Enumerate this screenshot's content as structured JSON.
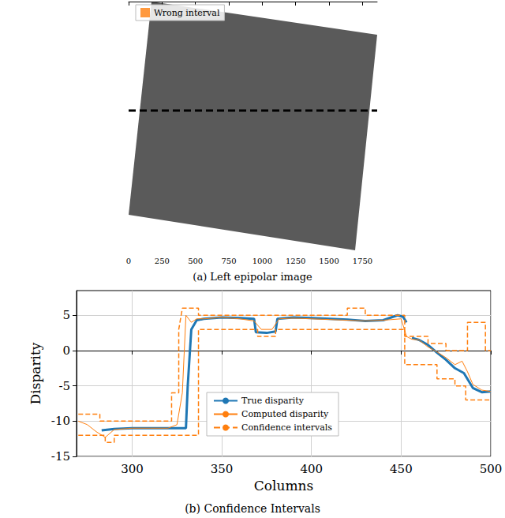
{
  "chart_data": [
    {
      "type": "image",
      "title": "(a) Left epipolar image",
      "xlim": [
        0,
        1860
      ],
      "xticks": [
        0,
        250,
        500,
        750,
        1000,
        1250,
        1500,
        1750
      ],
      "ylim": [
        0,
        1860
      ],
      "tick_labels": "x",
      "legend": "upper left",
      "series": [
        {
          "name": "Wrong interval",
          "color": "#ff7f0e",
          "marker": "square",
          "x": [],
          "values": []
        }
      ]
    },
    {
      "type": "line",
      "title": "(b) Confidence Intervals",
      "x_label": "Columns",
      "y_label": "Disparity",
      "xlim": [
        269,
        500
      ],
      "xticks": [
        300,
        350,
        400,
        450,
        500
      ],
      "ylim": [
        -15,
        8.5
      ],
      "yticks": [
        -15,
        -10,
        -5,
        0,
        5
      ],
      "grid": true,
      "legend": "lower center",
      "series": [
        {
          "name": "True disparity",
          "color": "#1f77b4",
          "line_style": "thick",
          "x": [
            283,
            290,
            300,
            310,
            320,
            330,
            331,
            333,
            336,
            340,
            350,
            360,
            368,
            369,
            375,
            380,
            381,
            390,
            400,
            410,
            420,
            430,
            440,
            448,
            451,
            453,
            454,
            456,
            460,
            465,
            470,
            475,
            480,
            485,
            490,
            495,
            500
          ],
          "values": [
            -11.3,
            -11.1,
            -11,
            -11,
            -11,
            -11,
            -5,
            3,
            4.3,
            4.5,
            4.7,
            4.6,
            4.5,
            2.6,
            2.5,
            2.7,
            4.5,
            4.7,
            4.6,
            4.5,
            4.4,
            4.2,
            4.3,
            5,
            4.8,
            4,
            null,
            1.8,
            1.5,
            0.8,
            -0.3,
            -1.3,
            -2.5,
            -3.2,
            -5.3,
            -5.9,
            -5.8
          ]
        },
        {
          "name": "Computed disparity",
          "color": "#ff7f0e",
          "line_style": "solid",
          "x": [
            270,
            275,
            280,
            285,
            290,
            300,
            310,
            320,
            325,
            328,
            330,
            333,
            336,
            340,
            350,
            360,
            368,
            372,
            378,
            382,
            390,
            400,
            410,
            420,
            430,
            440,
            450,
            453,
            456,
            460,
            465,
            470,
            475,
            480,
            484,
            487,
            490,
            495,
            500
          ],
          "values": [
            -10,
            -10.5,
            -11.5,
            -12.3,
            -11.2,
            -11,
            -11,
            -11,
            -10.5,
            -6,
            5,
            4,
            4.5,
            4.5,
            4.7,
            4.5,
            4.2,
            3,
            3,
            4.5,
            4.6,
            4.5,
            4.4,
            4.3,
            4.2,
            4.3,
            4.5,
            2,
            1.6,
            1.5,
            0.5,
            -0.2,
            -1,
            -2,
            -1.5,
            -3,
            -4.8,
            -5.6,
            -5.8
          ]
        },
        {
          "name": "Confidence intervals",
          "color": "#ff7f0e",
          "line_style": "dashed",
          "x": [
            270,
            282,
            282,
            300,
            322,
            322,
            326,
            326,
            328,
            337,
            337,
            380,
            380,
            420,
            420,
            430,
            430,
            452,
            452,
            465,
            465,
            475,
            475,
            487,
            487,
            497,
            497,
            500
          ],
          "values": [
            -9,
            -9,
            -10,
            -10,
            -10,
            -6,
            -6,
            3,
            6,
            6,
            5,
            5,
            5,
            5,
            6,
            6,
            5,
            5,
            2,
            2,
            1,
            1,
            0,
            0,
            4,
            4,
            0,
            0
          ]
        },
        {
          "name": "Confidence intervals",
          "color": "#ff7f0e",
          "line_style": "dashed",
          "x": [
            270,
            285,
            285,
            290,
            290,
            337,
            337,
            370,
            370,
            380,
            380,
            452,
            452,
            470,
            470,
            480,
            480,
            486,
            486,
            500
          ],
          "values": [
            -12,
            -12,
            -13,
            -13,
            -12,
            -12,
            3,
            3,
            2,
            2,
            3,
            3,
            -2,
            -2,
            -4,
            -4,
            -5,
            -5,
            -7,
            -7
          ]
        }
      ]
    }
  ]
}
